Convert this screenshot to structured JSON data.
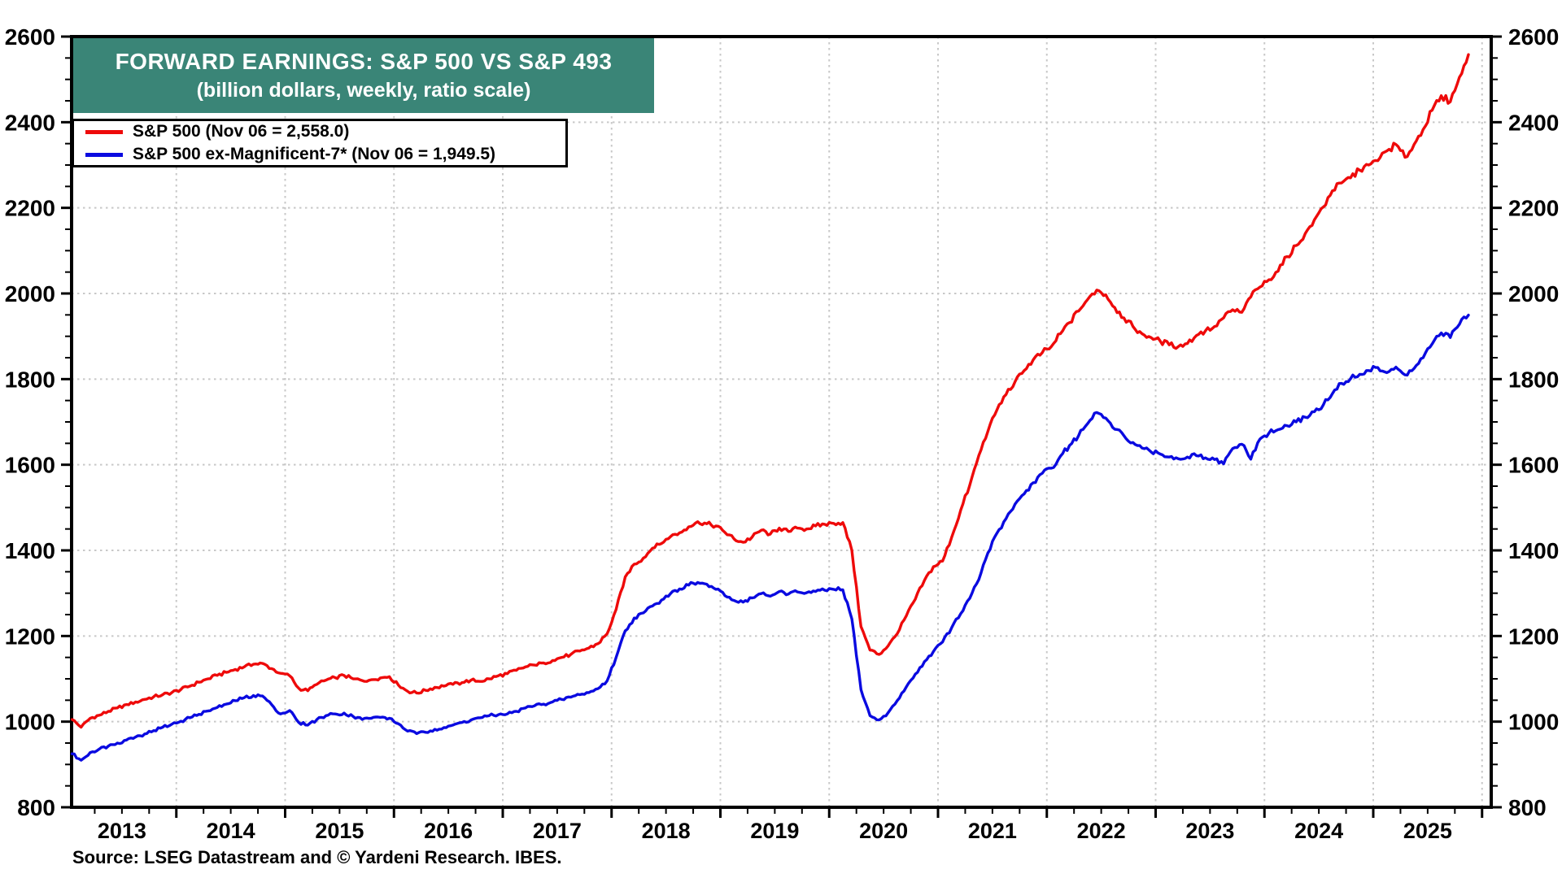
{
  "title": {
    "line1": "FORWARD EARNINGS: S&P 500 VS S&P 493",
    "line2": "(billion dollars, weekly, ratio scale)"
  },
  "legend": [
    {
      "label": "S&P 500 (Nov 06 = 2,558.0)",
      "color": "#ee0a0a"
    },
    {
      "label": "S&P 500 ex-Magnificent-7* (Nov 06 = 1,949.5)",
      "color": "#0a0ae0"
    }
  ],
  "source_note": "Source: LSEG Datastream and © Yardeni Research. IBES.",
  "colors": {
    "title_box": "#3a8577",
    "grid": "#c8c8c8",
    "axis": "#000000",
    "sp500_line": "#ee0a0a",
    "sp493_line": "#0a0ae0"
  },
  "chart_data": {
    "type": "line",
    "title": "FORWARD EARNINGS: S&P 500 VS S&P 493",
    "subtitle": "(billion dollars, weekly, ratio scale)",
    "x_unit": "year",
    "x_range": [
      2013.04,
      2026.08
    ],
    "ylim": [
      800,
      2600
    ],
    "y_ticks": [
      800,
      1000,
      1200,
      1400,
      1600,
      1800,
      2000,
      2200,
      2400,
      2600
    ],
    "y_minor_step": 50,
    "x_tick_years": [
      2013,
      2014,
      2015,
      2016,
      2017,
      2018,
      2019,
      2020,
      2021,
      2022,
      2023,
      2024,
      2025
    ],
    "grid": {
      "vertical": "yearly",
      "horizontal_step": 200,
      "style": "dotted"
    },
    "legend_position": "top-left",
    "sampling": "monthly values, Jan 2013 through Nov 2025",
    "series": [
      {
        "name": "S&P 500",
        "color": "#ee0a0a",
        "x_start": 2013,
        "step_months": 1,
        "values": [
          1005,
          987,
          1008,
          1015,
          1024,
          1032,
          1040,
          1046,
          1052,
          1058,
          1063,
          1068,
          1075,
          1083,
          1092,
          1100,
          1108,
          1115,
          1122,
          1128,
          1134,
          1136,
          1124,
          1113,
          1107,
          1078,
          1072,
          1087,
          1097,
          1103,
          1108,
          1100,
          1096,
          1098,
          1102,
          1105,
          1085,
          1071,
          1067,
          1073,
          1080,
          1083,
          1087,
          1091,
          1097,
          1094,
          1100,
          1107,
          1112,
          1120,
          1128,
          1132,
          1137,
          1143,
          1150,
          1157,
          1165,
          1172,
          1182,
          1205,
          1262,
          1338,
          1368,
          1382,
          1405,
          1416,
          1432,
          1441,
          1455,
          1467,
          1462,
          1457,
          1442,
          1427,
          1419,
          1431,
          1447,
          1438,
          1452,
          1444,
          1452,
          1450,
          1457,
          1461,
          1463,
          1465,
          1400,
          1222,
          1167,
          1157,
          1177,
          1205,
          1247,
          1286,
          1330,
          1362,
          1375,
          1430,
          1494,
          1552,
          1622,
          1678,
          1728,
          1764,
          1794,
          1820,
          1845,
          1862,
          1876,
          1906,
          1932,
          1959,
          1986,
          2008,
          1997,
          1967,
          1943,
          1923,
          1906,
          1897,
          1889,
          1880,
          1876,
          1883,
          1902,
          1913,
          1923,
          1943,
          1962,
          1956,
          1992,
          2015,
          2032,
          2052,
          2086,
          2112,
          2140,
          2172,
          2202,
          2240,
          2258,
          2270,
          2288,
          2300,
          2310,
          2333,
          2348,
          2318,
          2348,
          2383,
          2428,
          2462,
          2448,
          2505,
          2558
        ]
      },
      {
        "name": "S&P 500 ex-Magnificent-7",
        "color": "#0a0ae0",
        "x_start": 2013,
        "step_months": 1,
        "values": [
          925,
          910,
          928,
          936,
          943,
          950,
          957,
          964,
          971,
          979,
          987,
          994,
          1001,
          1009,
          1017,
          1025,
          1033,
          1041,
          1049,
          1056,
          1061,
          1060,
          1040,
          1018,
          1026,
          998,
          992,
          1005,
          1014,
          1018,
          1020,
          1012,
          1005,
          1008,
          1010,
          1008,
          995,
          978,
          972,
          975,
          982,
          986,
          992,
          998,
          1004,
          1009,
          1014,
          1016,
          1018,
          1024,
          1032,
          1037,
          1041,
          1046,
          1052,
          1057,
          1063,
          1068,
          1077,
          1095,
          1150,
          1212,
          1242,
          1254,
          1270,
          1284,
          1299,
          1310,
          1319,
          1325,
          1321,
          1309,
          1294,
          1283,
          1279,
          1289,
          1299,
          1293,
          1304,
          1298,
          1303,
          1301,
          1304,
          1307,
          1309,
          1308,
          1240,
          1075,
          1014,
          1004,
          1021,
          1049,
          1081,
          1111,
          1140,
          1164,
          1186,
          1219,
          1252,
          1288,
          1332,
          1394,
          1440,
          1474,
          1508,
          1532,
          1558,
          1580,
          1592,
          1620,
          1645,
          1668,
          1696,
          1722,
          1709,
          1683,
          1668,
          1652,
          1639,
          1630,
          1625,
          1618,
          1614,
          1618,
          1621,
          1616,
          1612,
          1602,
          1638,
          1648,
          1613,
          1660,
          1674,
          1682,
          1691,
          1700,
          1711,
          1724,
          1740,
          1766,
          1790,
          1801,
          1811,
          1820,
          1827,
          1815,
          1828,
          1810,
          1825,
          1850,
          1882,
          1908,
          1897,
          1928,
          1949.5
        ]
      }
    ]
  }
}
